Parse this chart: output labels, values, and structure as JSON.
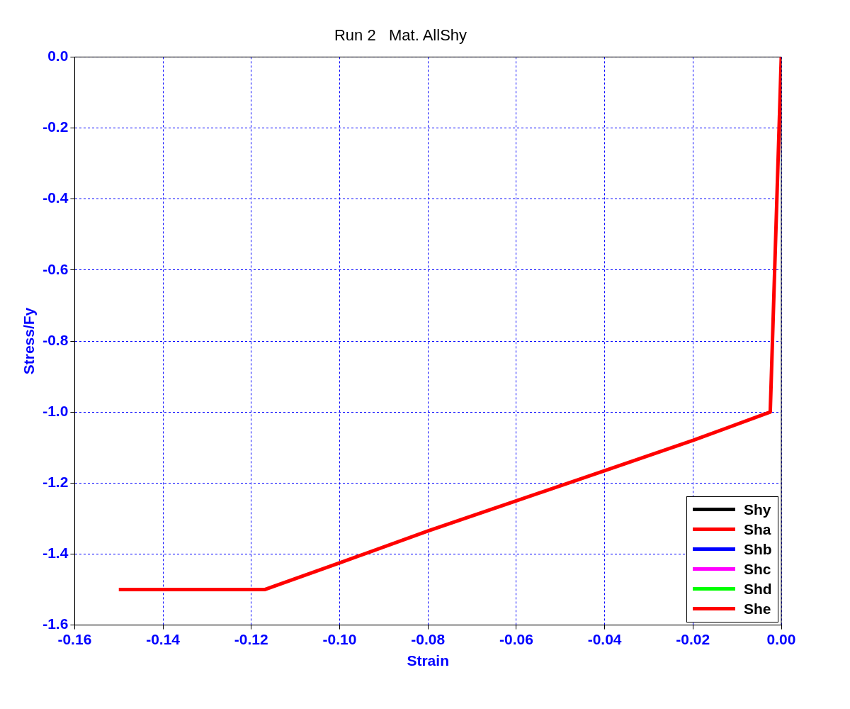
{
  "chart_data": {
    "type": "line",
    "title": "Run 2   Mat. AllShy",
    "xlabel": "Strain",
    "ylabel": "Stress/Fy",
    "x": [
      -0.15,
      -0.117,
      -0.1,
      -0.08,
      -0.06,
      -0.04,
      -0.02,
      -0.0025,
      0
    ],
    "series": [
      {
        "name": "Shy",
        "color": "#000000",
        "values": [
          null,
          null,
          null,
          null,
          null,
          null,
          null,
          null,
          null
        ]
      },
      {
        "name": "Sha",
        "color": "#ff0000",
        "values": [
          null,
          null,
          null,
          null,
          null,
          null,
          null,
          null,
          null
        ]
      },
      {
        "name": "Shb",
        "color": "#0000ff",
        "values": [
          null,
          null,
          null,
          null,
          null,
          null,
          null,
          null,
          null
        ]
      },
      {
        "name": "Shc",
        "color": "#ff00ff",
        "values": [
          null,
          null,
          null,
          null,
          null,
          null,
          null,
          null,
          null
        ]
      },
      {
        "name": "Shd",
        "color": "#00ff00",
        "values": [
          null,
          null,
          null,
          null,
          null,
          null,
          null,
          null,
          null
        ]
      },
      {
        "name": "She",
        "color": "#ff0000",
        "values": [
          -1.5,
          -1.5,
          -1.425,
          -1.335,
          -1.25,
          -1.165,
          -1.08,
          -1.0,
          0
        ]
      }
    ],
    "xlim": [
      -0.16,
      0
    ],
    "xticks": [
      {
        "value": -0.16,
        "label": "-0.16"
      },
      {
        "value": -0.14,
        "label": "-0.14"
      },
      {
        "value": -0.12,
        "label": "-0.12"
      },
      {
        "value": -0.1,
        "label": "-0.10"
      },
      {
        "value": -0.08,
        "label": "-0.08"
      },
      {
        "value": -0.06,
        "label": "-0.06"
      },
      {
        "value": -0.04,
        "label": "-0.04"
      },
      {
        "value": -0.02,
        "label": "-0.02"
      },
      {
        "value": 0,
        "label": "0.00"
      }
    ],
    "ylim": [
      -1.6,
      0
    ],
    "yticks": [
      {
        "value": -1.6,
        "label": "-1.6"
      },
      {
        "value": -1.4,
        "label": "-1.4"
      },
      {
        "value": -1.2,
        "label": "-1.2"
      },
      {
        "value": -1.0,
        "label": "-1.0"
      },
      {
        "value": -0.8,
        "label": "-0.8"
      },
      {
        "value": -0.6,
        "label": "-0.6"
      },
      {
        "value": -0.4,
        "label": "-0.4"
      },
      {
        "value": -0.2,
        "label": "-0.2"
      },
      {
        "value": 0,
        "label": "0.0"
      }
    ],
    "grid": true,
    "legend": "bottom right",
    "marker": "none",
    "line_style": "solid"
  }
}
